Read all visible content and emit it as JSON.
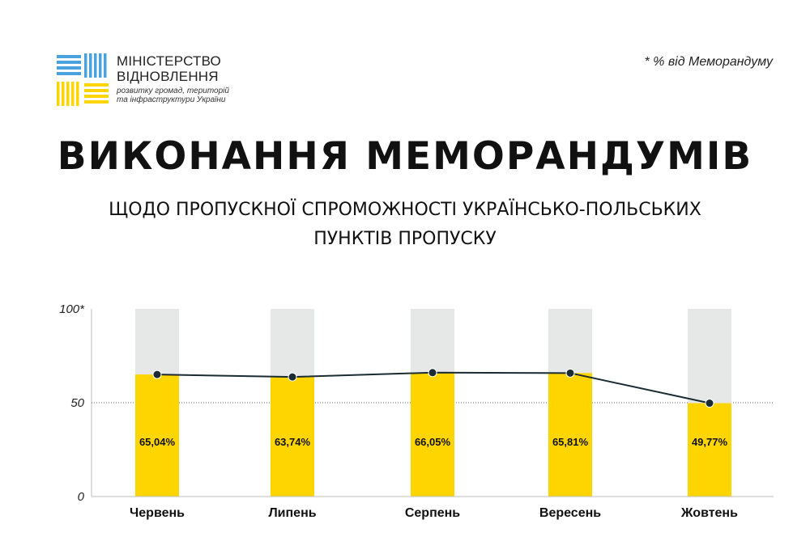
{
  "logo": {
    "line1": "МІНІСТЕРСТВО",
    "line2": "ВІДНОВЛЕННЯ",
    "line3": "розвитку громад, територій",
    "line4": "та інфраструктури України"
  },
  "note": "* % від Меморандуму",
  "title": "ВИКОНАННЯ МЕМОРАНДУМІВ",
  "subtitle": {
    "line1": "ЩОДО ПРОПУСКНОЇ СПРОМОЖНОСТІ УКРАЇНСЬКО-ПОЛЬСЬКИХ",
    "line2": "ПУНКТІВ ПРОПУСКУ"
  },
  "colors": {
    "bar": "#FFD500",
    "bar_background": "#E6E8E8",
    "line": "#1B2B33",
    "logo_blue": "#4AA3DF",
    "logo_yellow": "#FFD500"
  },
  "chart_data": {
    "type": "bar",
    "categories": [
      "Червень",
      "Липень",
      "Серпень",
      "Вересень",
      "Жовтень"
    ],
    "values": [
      65.04,
      63.74,
      66.05,
      65.81,
      49.77
    ],
    "data_labels": [
      "65,04%",
      "63,74%",
      "66,05%",
      "65,81%",
      "49,77%"
    ],
    "overlay": "line",
    "ylim": [
      0,
      100
    ],
    "yticks": [
      0,
      50,
      100
    ],
    "ytick_labels": [
      "0",
      "50",
      "100*"
    ],
    "grid": "dotted line at 50",
    "legend": "none"
  }
}
